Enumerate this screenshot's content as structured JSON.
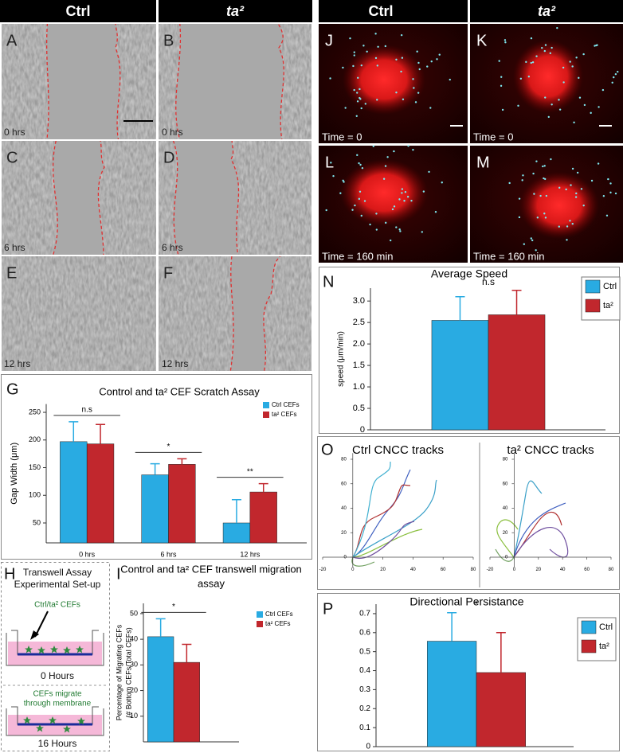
{
  "scratch_headers": [
    "Ctrl",
    "ta²"
  ],
  "scratch_panels": [
    {
      "letter": "A",
      "time": "0 hrs"
    },
    {
      "letter": "B",
      "time": "0 hrs"
    },
    {
      "letter": "C",
      "time": "6 hrs"
    },
    {
      "letter": "D",
      "time": "6 hrs"
    },
    {
      "letter": "E",
      "time": "12 hrs"
    },
    {
      "letter": "F",
      "time": "12 hrs"
    }
  ],
  "migration_headers": [
    "Ctrl",
    "ta²"
  ],
  "migration_panels": [
    {
      "letter": "J",
      "time": "Time = 0"
    },
    {
      "letter": "K",
      "time": "Time = 0"
    },
    {
      "letter": "L",
      "time": "Time = 160 min"
    },
    {
      "letter": "M",
      "time": "Time = 160 min"
    }
  ],
  "chart_letters": [
    "G",
    "I",
    "N",
    "P"
  ],
  "transwell": {
    "letter": "H",
    "title": [
      "Transwell Assay",
      "Experimental Set-up"
    ],
    "cells_label": "Ctrl/ta² CEFs",
    "time_before": "0 Hours",
    "migrate_label": [
      "CEFs migrate",
      "through membrane"
    ],
    "time_after": "16 Hours"
  },
  "track_letter": "O",
  "track_plots": [
    {
      "title": "Ctrl CNCC tracks",
      "xlim": [
        -20,
        80
      ],
      "ylim": [
        -8,
        85
      ],
      "xticks": [
        -20,
        0,
        20,
        40,
        60,
        80
      ],
      "yticks": [
        0,
        20,
        40,
        60,
        80
      ]
    },
    {
      "title": "ta² CNCC tracks",
      "xlim": [
        -20,
        80
      ],
      "ylim": [
        -8,
        85
      ],
      "xticks": [
        -20,
        0,
        20,
        40,
        60,
        80
      ],
      "yticks": [
        0,
        20,
        40,
        60,
        80
      ]
    }
  ],
  "chart_data": [
    {
      "type": "bar",
      "title": "Control and ta² CEF Scratch Assay",
      "y_label": "Gap Width (μm)",
      "categories": [
        "0 hrs",
        "6 hrs",
        "12 hrs"
      ],
      "series": [
        {
          "name": "Ctrl CEFs",
          "color": "#29abe2",
          "values": [
            197,
            137,
            50
          ],
          "errors": [
            36,
            20,
            42
          ]
        },
        {
          "name": "ta² CEFs",
          "color": "#c1272d",
          "values": [
            193,
            156,
            106
          ],
          "errors": [
            35,
            10,
            15
          ]
        }
      ],
      "ylim": [
        14,
        265
      ],
      "yticks": [
        50,
        100,
        150,
        200,
        250
      ],
      "annotations": [
        "n.s",
        "*",
        "**"
      ]
    },
    {
      "type": "bar",
      "title": [
        "Control and ta² CEF transwell migration",
        "assay"
      ],
      "y_label": [
        "Percentage of Migrating CEFs",
        "(# Bottom CEFs/Total CEFs)"
      ],
      "categories": [
        null
      ],
      "series": [
        {
          "name": "Ctrl CEFs",
          "color": "#29abe2",
          "values": [
            41
          ],
          "errors": [
            7
          ]
        },
        {
          "name": "ta² CEFs",
          "color": "#c1272d",
          "values": [
            31
          ],
          "errors": [
            7
          ]
        }
      ],
      "ylim": [
        0,
        54
      ],
      "yticks": [
        10,
        20,
        30,
        40,
        50
      ],
      "annotations": [
        "*"
      ]
    },
    {
      "type": "bar",
      "title": "Average Speed",
      "y_label": "speed (μm/min)",
      "categories": [
        null
      ],
      "series": [
        {
          "name": "Ctrl",
          "color": "#29abe2",
          "values": [
            2.55
          ],
          "errors": [
            0.55
          ]
        },
        {
          "name": "ta²",
          "color": "#c1272d",
          "values": [
            2.68
          ],
          "errors": [
            0.57
          ]
        }
      ],
      "ylim": [
        0,
        3.3
      ],
      "yticks": [
        0,
        0.5,
        {
          "value": 1,
          "label": "1.0"
        },
        1.5,
        {
          "value": 2,
          "label": "2.0"
        },
        2.5,
        {
          "value": 3,
          "label": "3.0"
        }
      ],
      "annotations": [
        "n.s"
      ]
    },
    {
      "type": "bar",
      "title": "Directional Persistance",
      "categories": [
        null
      ],
      "series": [
        {
          "name": "Ctrl",
          "color": "#29abe2",
          "values": [
            0.555
          ],
          "errors": [
            0.15
          ]
        },
        {
          "name": "ta²",
          "color": "#c1272d",
          "values": [
            0.39
          ],
          "errors": [
            0.21
          ]
        }
      ],
      "ylim": [
        0,
        0.75
      ],
      "yticks": [
        0,
        0.1,
        0.2,
        0.3,
        0.4,
        0.5,
        0.6,
        0.7
      ],
      "annotations": [
        "*"
      ]
    }
  ]
}
